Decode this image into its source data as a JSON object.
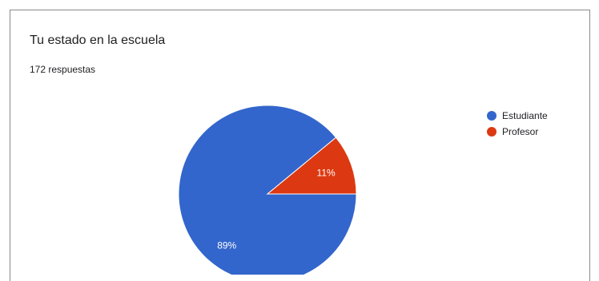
{
  "question": {
    "title": "Tu estado en la escuela",
    "responses": "172 respuestas"
  },
  "chart_data": {
    "type": "pie",
    "categories": [
      "Estudiante",
      "Profesor"
    ],
    "values": [
      89,
      11
    ],
    "data_labels": [
      "89%",
      "11%"
    ],
    "colors": [
      "#3366cc",
      "#dc3912"
    ],
    "legend_position": "right"
  }
}
